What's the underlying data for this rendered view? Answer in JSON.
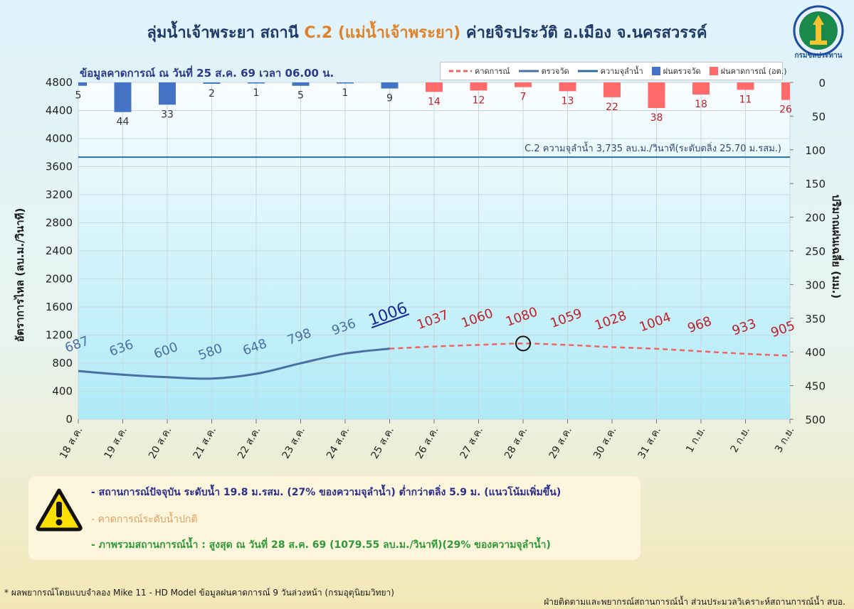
{
  "header": {
    "title_pre": "ลุ่มน้ำเจ้าพระยา สถานี ",
    "title_station": "C.2 (แม่น้ำเจ้าพระยา)",
    "title_post": " ค่ายจิรประวัติ อ.เมือง จ.นครสวรรค์",
    "subtitle": "ข้อมูลคาดการณ์ ณ วันที่ 25 ส.ค. 69 เวลา 06.00 น.",
    "logo_text": "กรมชลประทาน"
  },
  "legend": {
    "forecast": "คาดการณ์",
    "observed": "ตรวจวัด",
    "capacity": "ความจุลำน้ำ",
    "rain_observed": "ฝนตรวจวัด",
    "rain_forecast": "ฝนคาดการณ์ (อต.)"
  },
  "colors": {
    "observed_line": "#4a6fa5",
    "forecast_line": "#f06464",
    "capacity_line": "#2e6e9e",
    "rain_observed": "#4472c4",
    "rain_forecast": "#ff6b6b",
    "plot_bg_top": "#fafdff",
    "plot_bg_bottom": "#aeeaf7",
    "label_forecast": "#c0202a",
    "label_observed": "#4a6fa5"
  },
  "chart_data": {
    "type": "line",
    "x": [
      "18 ส.ค.",
      "19 ส.ค.",
      "20 ส.ค.",
      "21 ส.ค.",
      "22 ส.ค.",
      "23 ส.ค.",
      "24 ส.ค.",
      "25 ส.ค.",
      "26 ส.ค.",
      "27 ส.ค.",
      "28 ส.ค.",
      "29 ส.ค.",
      "30 ส.ค.",
      "31 ส.ค.",
      "1 ก.ย.",
      "2 ก.ย.",
      "3 ก.ย."
    ],
    "series": [
      {
        "name": "ตรวจวัด",
        "values": [
          687,
          636,
          600,
          580,
          648,
          798,
          936,
          1006,
          null,
          null,
          null,
          null,
          null,
          null,
          null,
          null,
          null
        ]
      },
      {
        "name": "คาดการณ์",
        "values": [
          null,
          null,
          null,
          null,
          null,
          null,
          null,
          1006,
          1037,
          1060,
          1080,
          1059,
          1028,
          1004,
          968,
          933,
          905
        ]
      },
      {
        "name": "ฝนตรวจวัด",
        "axis": "right",
        "values": [
          5,
          44,
          33,
          2,
          1,
          5,
          1,
          9,
          null,
          null,
          null,
          null,
          null,
          null,
          null,
          null,
          null
        ]
      },
      {
        "name": "ฝนคาดการณ์ (อต.)",
        "axis": "right",
        "values": [
          null,
          null,
          null,
          null,
          null,
          null,
          null,
          null,
          14,
          12,
          7,
          13,
          22,
          38,
          18,
          11,
          26
        ]
      }
    ],
    "capacity_value": 3735,
    "capacity_label": "C.2 ความจุลำน้ำ 3,735 ลบ.ม./วินาที(ระดับตลิ่ง 25.70 ม.รสม.)",
    "data_labels": [
      "687",
      "636",
      "600",
      "580",
      "648",
      "798",
      "936",
      "1006",
      "1037",
      "1060",
      "1080",
      "1059",
      "1028",
      "1004",
      "968",
      "933",
      "905"
    ],
    "y_ticks": [
      "0",
      "400",
      "800",
      "1200",
      "1600",
      "2000",
      "2400",
      "2800",
      "3200",
      "3600",
      "4000",
      "4400",
      "4800"
    ],
    "y2_ticks": [
      "0",
      "50",
      "100",
      "150",
      "200",
      "250",
      "300",
      "350",
      "400",
      "450",
      "500"
    ],
    "ylim": [
      0,
      4800
    ],
    "y2lim": [
      0,
      500
    ],
    "ylabel": "อัตราการไหล (ลบ.ม./วินาที)",
    "y2label": "ปริมาณฝนเฉลี่ย (มม.)",
    "peak_marker_index": 10,
    "grid": true
  },
  "info": {
    "line1": "- สถานการณ์ปัจจุบัน ระดับน้ำ 19.8 ม.รสม. (27% ของความจุลำน้ำ) ต่ำกว่าตลิ่ง 5.9 ม. (แนวโน้มเพิ่มขึ้น)",
    "line2": "- คาดการณ์ระดับน้ำปกติ",
    "line3": "- ภาพรวมสถานการณ์น้ำ : สูงสุด ณ วันที่ 28 ส.ค. 69 (1079.55 ลบ.ม./วินาที)(29% ของความจุลำน้ำ)"
  },
  "footer": {
    "left": "* ผลพยากรณ์โดยแบบจำลอง Mike 11 - HD Model ข้อมูลฝนคาดการณ์ 9 วันล่วงหน้า (กรมอุตุนิยมวิทยา)",
    "right": "ฝ่ายติดตามและพยากรณ์สถานการณ์น้ำ ส่วนประมวลวิเคราะห์สถานการณ์น้ำ สบอ."
  }
}
